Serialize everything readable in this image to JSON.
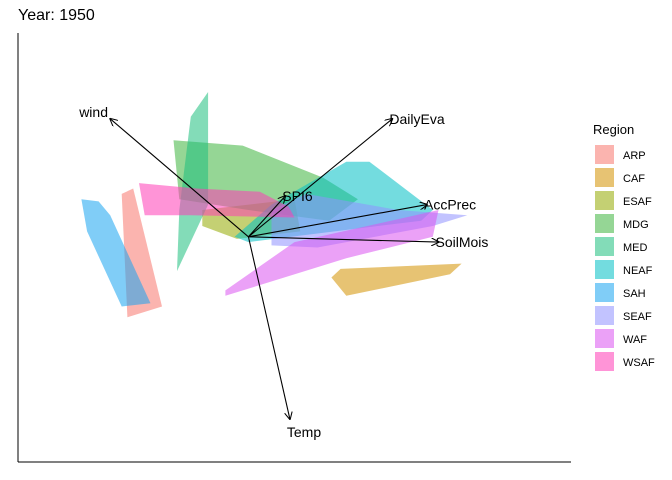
{
  "chart_data": {
    "type": "scatter",
    "title": "Year: 1950",
    "legend": {
      "title": "Region",
      "position": "right",
      "entries": [
        {
          "name": "ARP",
          "color": "#F8766D"
        },
        {
          "name": "CAF",
          "color": "#D39200"
        },
        {
          "name": "ESAF",
          "color": "#93AA00"
        },
        {
          "name": "MDG",
          "color": "#3EB53E"
        },
        {
          "name": "MED",
          "color": "#1EBF7E"
        },
        {
          "name": "NEAF",
          "color": "#00BFC4"
        },
        {
          "name": "SAH",
          "color": "#18A4F0"
        },
        {
          "name": "SEAF",
          "color": "#8F91FF"
        },
        {
          "name": "WAF",
          "color": "#DB54F0"
        },
        {
          "name": "WSAF",
          "color": "#FF3DB7"
        }
      ]
    },
    "vectors": [
      {
        "name": "wind",
        "x": -1.2,
        "y": 1.1
      },
      {
        "name": "DailyEva",
        "x": 1.25,
        "y": 1.1
      },
      {
        "name": "SPI6",
        "x": 0.32,
        "y": 0.38
      },
      {
        "name": "AccPrec",
        "x": 1.55,
        "y": 0.3
      },
      {
        "name": "SoilMois",
        "x": 1.65,
        "y": -0.05
      },
      {
        "name": "Temp",
        "x": 0.36,
        "y": -1.7
      }
    ],
    "hulls": [
      {
        "region": "ARP",
        "points": [
          [
            -1.1,
            0.4
          ],
          [
            -1.0,
            0.45
          ],
          [
            -0.75,
            -0.65
          ],
          [
            -1.05,
            -0.75
          ]
        ]
      },
      {
        "region": "CAF",
        "points": [
          [
            0.8,
            -0.3
          ],
          [
            1.85,
            -0.25
          ],
          [
            1.75,
            -0.35
          ],
          [
            0.85,
            -0.55
          ],
          [
            0.72,
            -0.38
          ]
        ]
      },
      {
        "region": "ESAF",
        "points": [
          [
            -0.4,
            0.25
          ],
          [
            0.4,
            0.35
          ],
          [
            0.45,
            0.05
          ],
          [
            -0.1,
            -0.02
          ],
          [
            -0.4,
            0.1
          ]
        ]
      },
      {
        "region": "MDG",
        "points": [
          [
            -0.65,
            0.9
          ],
          [
            -0.05,
            0.85
          ],
          [
            0.65,
            0.55
          ],
          [
            0.95,
            0.35
          ],
          [
            0.7,
            0.15
          ],
          [
            0.0,
            0.25
          ],
          [
            -0.6,
            0.35
          ]
        ]
      },
      {
        "region": "MED",
        "points": [
          [
            -0.5,
            1.12
          ],
          [
            -0.35,
            1.35
          ],
          [
            -0.35,
            0.3
          ],
          [
            -0.62,
            -0.32
          ],
          [
            -0.6,
            0.25
          ]
        ]
      },
      {
        "region": "NEAF",
        "points": [
          [
            0.85,
            0.7
          ],
          [
            1.05,
            0.7
          ],
          [
            1.6,
            0.25
          ],
          [
            1.5,
            0.15
          ],
          [
            0.0,
            -0.05
          ],
          [
            -0.12,
            0.0
          ],
          [
            0.2,
            0.3
          ]
        ]
      },
      {
        "region": "SAH",
        "points": [
          [
            -1.45,
            0.35
          ],
          [
            -1.3,
            0.33
          ],
          [
            -1.2,
            0.2
          ],
          [
            -0.85,
            -0.62
          ],
          [
            -1.1,
            -0.65
          ],
          [
            -1.4,
            0.05
          ]
        ]
      },
      {
        "region": "SEAF",
        "points": [
          [
            0.5,
            0.4
          ],
          [
            1.3,
            0.25
          ],
          [
            1.9,
            0.2
          ],
          [
            1.6,
            0.1
          ],
          [
            0.6,
            -0.1
          ],
          [
            0.2,
            -0.08
          ],
          [
            0.2,
            0.25
          ]
        ]
      },
      {
        "region": "WAF",
        "points": [
          [
            0.4,
            -0.05
          ],
          [
            1.45,
            0.2
          ],
          [
            1.65,
            0.25
          ],
          [
            1.6,
            0.0
          ],
          [
            0.85,
            -0.2
          ],
          [
            -0.2,
            -0.55
          ],
          [
            -0.2,
            -0.5
          ]
        ]
      },
      {
        "region": "WSAF",
        "points": [
          [
            -0.95,
            0.5
          ],
          [
            -0.45,
            0.45
          ],
          [
            0.1,
            0.42
          ],
          [
            0.35,
            0.28
          ],
          [
            0.4,
            0.18
          ],
          [
            -0.5,
            0.2
          ],
          [
            -0.9,
            0.2
          ]
        ]
      }
    ],
    "xlim": [
      -2.0,
      2.8
    ],
    "ylim": [
      -2.1,
      1.9
    ],
    "grid": false
  }
}
